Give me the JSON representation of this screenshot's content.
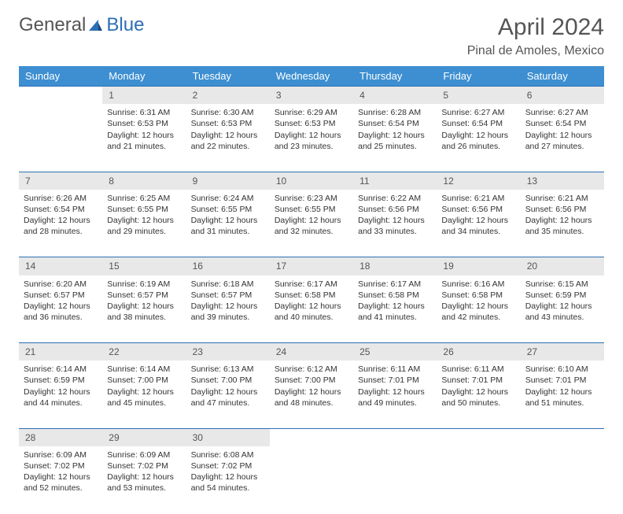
{
  "logo": {
    "word1": "General",
    "word2": "Blue",
    "accent_color": "#2c6fb5"
  },
  "title": "April 2024",
  "location": "Pinal de Amoles, Mexico",
  "day_headers": [
    "Sunday",
    "Monday",
    "Tuesday",
    "Wednesday",
    "Thursday",
    "Friday",
    "Saturday"
  ],
  "header_bg": "#3d8fd1",
  "header_fg": "#ffffff",
  "daynum_bg": "#e8e8e8",
  "rule_color": "#2c6fb5",
  "text_color": "#333333",
  "body_font_size": 10.5,
  "header_font_size": 13,
  "daynum_font_size": 12,
  "weeks": [
    [
      null,
      {
        "n": "1",
        "sr": "Sunrise: 6:31 AM",
        "ss": "Sunset: 6:53 PM",
        "dl": "Daylight: 12 hours and 21 minutes."
      },
      {
        "n": "2",
        "sr": "Sunrise: 6:30 AM",
        "ss": "Sunset: 6:53 PM",
        "dl": "Daylight: 12 hours and 22 minutes."
      },
      {
        "n": "3",
        "sr": "Sunrise: 6:29 AM",
        "ss": "Sunset: 6:53 PM",
        "dl": "Daylight: 12 hours and 23 minutes."
      },
      {
        "n": "4",
        "sr": "Sunrise: 6:28 AM",
        "ss": "Sunset: 6:54 PM",
        "dl": "Daylight: 12 hours and 25 minutes."
      },
      {
        "n": "5",
        "sr": "Sunrise: 6:27 AM",
        "ss": "Sunset: 6:54 PM",
        "dl": "Daylight: 12 hours and 26 minutes."
      },
      {
        "n": "6",
        "sr": "Sunrise: 6:27 AM",
        "ss": "Sunset: 6:54 PM",
        "dl": "Daylight: 12 hours and 27 minutes."
      }
    ],
    [
      {
        "n": "7",
        "sr": "Sunrise: 6:26 AM",
        "ss": "Sunset: 6:54 PM",
        "dl": "Daylight: 12 hours and 28 minutes."
      },
      {
        "n": "8",
        "sr": "Sunrise: 6:25 AM",
        "ss": "Sunset: 6:55 PM",
        "dl": "Daylight: 12 hours and 29 minutes."
      },
      {
        "n": "9",
        "sr": "Sunrise: 6:24 AM",
        "ss": "Sunset: 6:55 PM",
        "dl": "Daylight: 12 hours and 31 minutes."
      },
      {
        "n": "10",
        "sr": "Sunrise: 6:23 AM",
        "ss": "Sunset: 6:55 PM",
        "dl": "Daylight: 12 hours and 32 minutes."
      },
      {
        "n": "11",
        "sr": "Sunrise: 6:22 AM",
        "ss": "Sunset: 6:56 PM",
        "dl": "Daylight: 12 hours and 33 minutes."
      },
      {
        "n": "12",
        "sr": "Sunrise: 6:21 AM",
        "ss": "Sunset: 6:56 PM",
        "dl": "Daylight: 12 hours and 34 minutes."
      },
      {
        "n": "13",
        "sr": "Sunrise: 6:21 AM",
        "ss": "Sunset: 6:56 PM",
        "dl": "Daylight: 12 hours and 35 minutes."
      }
    ],
    [
      {
        "n": "14",
        "sr": "Sunrise: 6:20 AM",
        "ss": "Sunset: 6:57 PM",
        "dl": "Daylight: 12 hours and 36 minutes."
      },
      {
        "n": "15",
        "sr": "Sunrise: 6:19 AM",
        "ss": "Sunset: 6:57 PM",
        "dl": "Daylight: 12 hours and 38 minutes."
      },
      {
        "n": "16",
        "sr": "Sunrise: 6:18 AM",
        "ss": "Sunset: 6:57 PM",
        "dl": "Daylight: 12 hours and 39 minutes."
      },
      {
        "n": "17",
        "sr": "Sunrise: 6:17 AM",
        "ss": "Sunset: 6:58 PM",
        "dl": "Daylight: 12 hours and 40 minutes."
      },
      {
        "n": "18",
        "sr": "Sunrise: 6:17 AM",
        "ss": "Sunset: 6:58 PM",
        "dl": "Daylight: 12 hours and 41 minutes."
      },
      {
        "n": "19",
        "sr": "Sunrise: 6:16 AM",
        "ss": "Sunset: 6:58 PM",
        "dl": "Daylight: 12 hours and 42 minutes."
      },
      {
        "n": "20",
        "sr": "Sunrise: 6:15 AM",
        "ss": "Sunset: 6:59 PM",
        "dl": "Daylight: 12 hours and 43 minutes."
      }
    ],
    [
      {
        "n": "21",
        "sr": "Sunrise: 6:14 AM",
        "ss": "Sunset: 6:59 PM",
        "dl": "Daylight: 12 hours and 44 minutes."
      },
      {
        "n": "22",
        "sr": "Sunrise: 6:14 AM",
        "ss": "Sunset: 7:00 PM",
        "dl": "Daylight: 12 hours and 45 minutes."
      },
      {
        "n": "23",
        "sr": "Sunrise: 6:13 AM",
        "ss": "Sunset: 7:00 PM",
        "dl": "Daylight: 12 hours and 47 minutes."
      },
      {
        "n": "24",
        "sr": "Sunrise: 6:12 AM",
        "ss": "Sunset: 7:00 PM",
        "dl": "Daylight: 12 hours and 48 minutes."
      },
      {
        "n": "25",
        "sr": "Sunrise: 6:11 AM",
        "ss": "Sunset: 7:01 PM",
        "dl": "Daylight: 12 hours and 49 minutes."
      },
      {
        "n": "26",
        "sr": "Sunrise: 6:11 AM",
        "ss": "Sunset: 7:01 PM",
        "dl": "Daylight: 12 hours and 50 minutes."
      },
      {
        "n": "27",
        "sr": "Sunrise: 6:10 AM",
        "ss": "Sunset: 7:01 PM",
        "dl": "Daylight: 12 hours and 51 minutes."
      }
    ],
    [
      {
        "n": "28",
        "sr": "Sunrise: 6:09 AM",
        "ss": "Sunset: 7:02 PM",
        "dl": "Daylight: 12 hours and 52 minutes."
      },
      {
        "n": "29",
        "sr": "Sunrise: 6:09 AM",
        "ss": "Sunset: 7:02 PM",
        "dl": "Daylight: 12 hours and 53 minutes."
      },
      {
        "n": "30",
        "sr": "Sunrise: 6:08 AM",
        "ss": "Sunset: 7:02 PM",
        "dl": "Daylight: 12 hours and 54 minutes."
      },
      null,
      null,
      null,
      null
    ]
  ]
}
